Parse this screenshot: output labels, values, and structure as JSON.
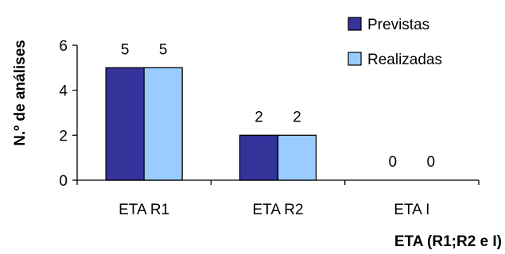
{
  "chart_data": {
    "type": "bar",
    "categories": [
      "ETA R1",
      "ETA R2",
      "ETA I"
    ],
    "series": [
      {
        "name": "Previstas",
        "values": [
          5,
          2,
          0
        ],
        "color": "#333399"
      },
      {
        "name": "Realizadas",
        "values": [
          5,
          2,
          0
        ],
        "color": "#99ccff"
      }
    ],
    "xlabel": "ETA (R1;R2 e I)",
    "ylabel": "N.º de análises",
    "ylim": [
      0,
      6
    ],
    "yticks": [
      0,
      2,
      4,
      6
    ],
    "grid": false,
    "legend_position": "top-right",
    "data_labels": true
  }
}
